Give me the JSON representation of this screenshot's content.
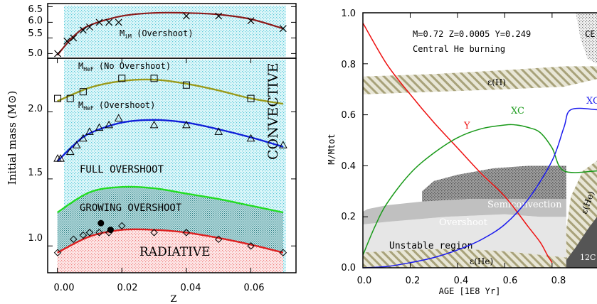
{
  "chart_data": [
    {
      "type": "line",
      "panel": "top-left",
      "ylabel": "Initial mass (M⊙)",
      "xlim": [
        -0.003,
        0.074
      ],
      "ylim": [
        4.85,
        6.6
      ],
      "yticks": [
        "5.0",
        "5.5",
        "6.0",
        "6.5"
      ],
      "annotations": [
        {
          "main": "M",
          "sub": "iM",
          "rest": " (Overshoot)"
        }
      ],
      "series": [
        {
          "name": "M_iM (Overshoot)",
          "marker": "x",
          "color": "#8b1a1a",
          "x": [
            0.0001,
            0.003,
            0.005,
            0.008,
            0.01,
            0.013,
            0.016,
            0.019,
            0.04,
            0.05,
            0.06,
            0.07
          ],
          "y": [
            5.0,
            5.4,
            5.5,
            5.75,
            5.85,
            6.0,
            6.0,
            6.0,
            6.2,
            6.2,
            6.05,
            5.8
          ],
          "fit_x": [
            0.0,
            0.005,
            0.01,
            0.02,
            0.03,
            0.04,
            0.05,
            0.06,
            0.07
          ],
          "fit_y": [
            4.95,
            5.55,
            5.9,
            6.2,
            6.3,
            6.3,
            6.25,
            6.1,
            5.8
          ]
        }
      ]
    },
    {
      "type": "line",
      "panel": "bottom-left",
      "xlabel": "Z",
      "xlim": [
        -0.003,
        0.074
      ],
      "ylim": [
        0.8,
        2.4
      ],
      "xticks": [
        "0.00",
        "0.02",
        "0.04",
        "0.06"
      ],
      "yticks": [
        "1.0",
        "1.5",
        "2.0"
      ],
      "regions": [
        "CONVECTIVE",
        "FULL OVERSHOOT",
        "GROWING OVERSHOOT",
        "RADIATIVE"
      ],
      "series": [
        {
          "name": "M_HeF (No Overshoot)",
          "marker": "square",
          "color": "#9a9a1a",
          "x": [
            0.0001,
            0.004,
            0.008,
            0.02,
            0.03,
            0.04,
            0.06
          ],
          "y": [
            2.1,
            2.1,
            2.15,
            2.25,
            2.25,
            2.2,
            2.1
          ],
          "fit_x": [
            0.0,
            0.01,
            0.02,
            0.03,
            0.04,
            0.05,
            0.06,
            0.07
          ],
          "fit_y": [
            2.08,
            2.18,
            2.23,
            2.24,
            2.21,
            2.16,
            2.1,
            2.06
          ]
        },
        {
          "name": "M_HeF (Overshoot)",
          "marker": "triangle",
          "color": "#1020d8",
          "x": [
            0.0001,
            0.001,
            0.004,
            0.006,
            0.008,
            0.01,
            0.013,
            0.016,
            0.019,
            0.03,
            0.04,
            0.05,
            0.06,
            0.07
          ],
          "y": [
            1.65,
            1.65,
            1.7,
            1.75,
            1.8,
            1.85,
            1.88,
            1.9,
            1.95,
            1.9,
            1.9,
            1.85,
            1.8,
            1.75
          ],
          "fit_x": [
            0.0,
            0.005,
            0.01,
            0.02,
            0.03,
            0.04,
            0.05,
            0.06,
            0.07
          ],
          "fit_y": [
            1.63,
            1.75,
            1.84,
            1.92,
            1.94,
            1.92,
            1.87,
            1.81,
            1.74
          ]
        },
        {
          "name": "Full / growing overshoot boundary",
          "color": "#22dd22",
          "fit_x": [
            0.0,
            0.01,
            0.02,
            0.03,
            0.04,
            0.05,
            0.06,
            0.07
          ],
          "fit_y": [
            1.25,
            1.4,
            1.44,
            1.43,
            1.39,
            1.35,
            1.3,
            1.25
          ]
        },
        {
          "name": "Growing overshoot / radiative boundary",
          "marker": "diamond",
          "color": "#dd2020",
          "x": [
            0.0001,
            0.005,
            0.008,
            0.01,
            0.013,
            0.016,
            0.02,
            0.03,
            0.04,
            0.05,
            0.06,
            0.07
          ],
          "y": [
            0.95,
            1.05,
            1.08,
            1.1,
            1.1,
            1.1,
            1.15,
            1.1,
            1.1,
            1.05,
            1.0,
            0.95
          ],
          "fit_x": [
            0.0,
            0.01,
            0.02,
            0.03,
            0.04,
            0.05,
            0.06,
            0.07
          ],
          "fit_y": [
            0.95,
            1.07,
            1.12,
            1.12,
            1.1,
            1.06,
            1.01,
            0.95
          ]
        },
        {
          "name": "filled points",
          "marker": "circle",
          "color": "#000000",
          "x": [
            0.0135,
            0.0165
          ],
          "y": [
            1.17,
            1.12
          ]
        }
      ],
      "labels": [
        {
          "main": "M",
          "sub": "HeF",
          "rest": " (No Overshoot)"
        },
        {
          "main": "M",
          "sub": "HeF",
          "rest": " (Overshoot)"
        }
      ]
    },
    {
      "type": "line",
      "panel": "right",
      "xlabel": "AGE [1E8 Yr]",
      "ylabel": "M/Mtot",
      "xlim": [
        0.0,
        0.99
      ],
      "ylim": [
        0.0,
        1.0
      ],
      "xticks": [
        "0.0",
        "0.2",
        "0.4",
        "0.6",
        "0.8"
      ],
      "yticks": [
        "0.0",
        "0.2",
        "0.4",
        "0.6",
        "0.8",
        "1.0"
      ],
      "header_lines": [
        "M=0.72  Z=0.0005 Y=0.249",
        "Central He burning"
      ],
      "region_labels": [
        "CE",
        "ε(H)",
        "Semiconvection",
        "Overshoot",
        "Unstable region",
        "ε(He)",
        "ε(He)",
        "12C",
        "16O"
      ],
      "series": [
        {
          "name": "Y",
          "color": "#ee1111",
          "x": [
            0.0,
            0.1,
            0.2,
            0.3,
            0.4,
            0.5,
            0.6,
            0.7,
            0.75,
            0.78,
            0.8
          ],
          "y": [
            0.96,
            0.8,
            0.68,
            0.57,
            0.47,
            0.37,
            0.28,
            0.16,
            0.1,
            0.05,
            0.02
          ]
        },
        {
          "name": "XC",
          "color": "#1a9a1a",
          "x": [
            0.0,
            0.05,
            0.1,
            0.2,
            0.3,
            0.4,
            0.5,
            0.6,
            0.65,
            0.7,
            0.75,
            0.8,
            0.85,
            0.99
          ],
          "y": [
            0.05,
            0.16,
            0.25,
            0.37,
            0.45,
            0.51,
            0.545,
            0.56,
            0.56,
            0.55,
            0.53,
            0.47,
            0.38,
            0.38
          ]
        },
        {
          "name": "XO",
          "color": "#1a1aee",
          "x": [
            0.0,
            0.1,
            0.2,
            0.3,
            0.4,
            0.5,
            0.6,
            0.7,
            0.8,
            0.85,
            0.88,
            0.99
          ],
          "y": [
            0.0,
            0.005,
            0.02,
            0.04,
            0.07,
            0.11,
            0.17,
            0.27,
            0.42,
            0.55,
            0.62,
            0.62
          ]
        }
      ],
      "series_labels": [
        "Y",
        "XC",
        "XC"
      ]
    }
  ]
}
